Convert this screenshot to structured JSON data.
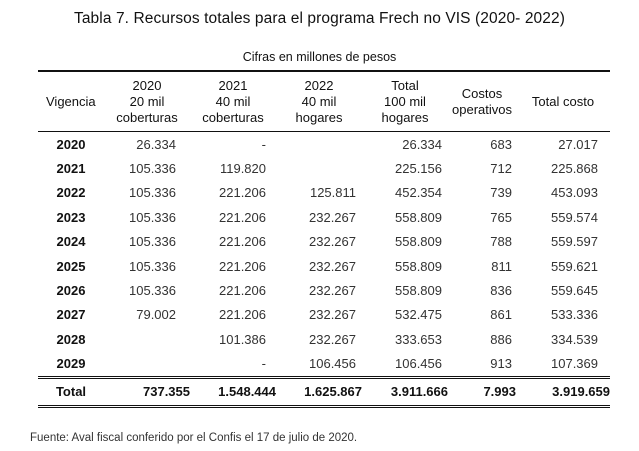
{
  "title": "Tabla 7. Recursos totales para el programa Frech no VIS (2020- 2022)",
  "subtitle": "Cifras en millones de pesos",
  "headers": {
    "vigencia": "Vigencia",
    "c2020": [
      "2020",
      "20 mil",
      "coberturas"
    ],
    "c2021": [
      "2021",
      "40 mil",
      "coberturas"
    ],
    "c2022": [
      "2022",
      "40 mil",
      "hogares"
    ],
    "total": [
      "Total",
      "100 mil",
      "hogares"
    ],
    "costos": [
      "Costos",
      "operativos"
    ],
    "total_costo": "Total costo"
  },
  "rows": [
    [
      "2020",
      "26.334",
      "-",
      "",
      "26.334",
      "683",
      "27.017"
    ],
    [
      "2021",
      "105.336",
      "119.820",
      "",
      "225.156",
      "712",
      "225.868"
    ],
    [
      "2022",
      "105.336",
      "221.206",
      "125.811",
      "452.354",
      "739",
      "453.093"
    ],
    [
      "2023",
      "105.336",
      "221.206",
      "232.267",
      "558.809",
      "765",
      "559.574"
    ],
    [
      "2024",
      "105.336",
      "221.206",
      "232.267",
      "558.809",
      "788",
      "559.597"
    ],
    [
      "2025",
      "105.336",
      "221.206",
      "232.267",
      "558.809",
      "811",
      "559.621"
    ],
    [
      "2026",
      "105.336",
      "221.206",
      "232.267",
      "558.809",
      "836",
      "559.645"
    ],
    [
      "2027",
      "79.002",
      "221.206",
      "232.267",
      "532.475",
      "861",
      "533.336"
    ],
    [
      "2028",
      "",
      "101.386",
      "232.267",
      "333.653",
      "886",
      "334.539"
    ],
    [
      "2029",
      "",
      "-",
      "106.456",
      "106.456",
      "913",
      "107.369"
    ]
  ],
  "total_row": [
    "Total",
    "737.355",
    "1.548.444",
    "1.625.867",
    "3.911.666",
    "7.993",
    "3.919.659"
  ],
  "source": "Fuente: Aval fiscal conferido por el Confis el 17 de julio de 2020."
}
